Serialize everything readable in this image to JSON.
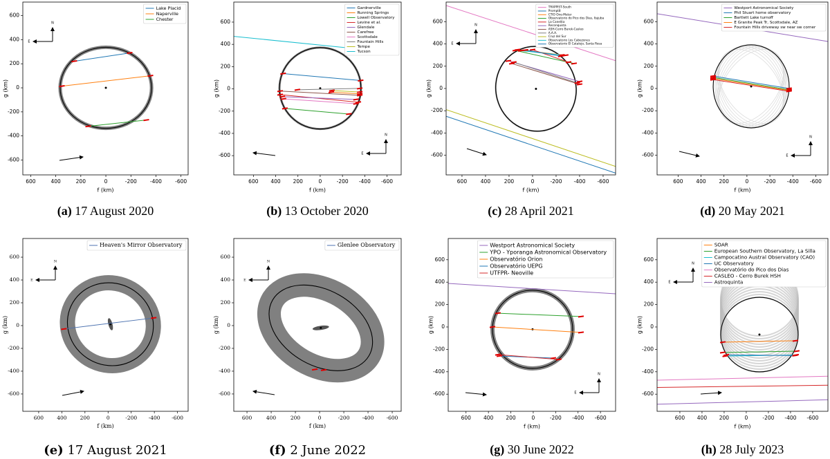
{
  "chart_data": [
    {
      "type": "occultation",
      "label": "(a)",
      "caption": "17 August 2020",
      "xlabel": "f (km)",
      "ylabel": "g (km)",
      "xlim": [
        663,
        -657
      ],
      "ylim": [
        -724,
        713
      ],
      "xticks": [
        600,
        400,
        200,
        0,
        -200,
        -400,
        -600
      ],
      "yticks": [
        -600,
        -400,
        -200,
        0,
        200,
        400,
        600
      ],
      "limb": {
        "f": 0,
        "g": 0,
        "a": 365,
        "b": 337,
        "angle": 0
      },
      "series": [
        {
          "name": "Lake Placid",
          "color": "#1f77b4",
          "x": [
            252,
            -190
          ],
          "values": [
            221,
            290
          ]
        },
        {
          "name": "Naperville",
          "color": "#ff7f0e",
          "x": [
            351,
            -356
          ],
          "values": [
            14,
            100
          ]
        },
        {
          "name": "Chester",
          "color": "#2ca02c",
          "x": [
            141,
            -323
          ],
          "values": [
            -320,
            -268
          ]
        }
      ]
    },
    {
      "type": "occultation",
      "label": "(b)",
      "caption": "13 October 2020",
      "xlabel": "f (km)",
      "ylabel": "g (km)",
      "xlim": [
        776,
        -727
      ],
      "ylim": [
        -773,
        780
      ],
      "xticks": [
        600,
        400,
        200,
        0,
        -200,
        -400,
        -600
      ],
      "yticks": [
        -600,
        -400,
        -200,
        0,
        200,
        400,
        600
      ],
      "limb": {
        "f": 0,
        "g": 5,
        "a": 366,
        "b": 366,
        "angle": 0
      },
      "series": [
        {
          "name": "Gardnerville",
          "color": "#1f77b4",
          "x": [
            333,
            -363
          ],
          "values": [
            137,
            75
          ]
        },
        {
          "name": "Running Springs",
          "color": "#ff7f0e",
          "x": [
            -100,
            -355
          ],
          "values": [
            -30,
            -45
          ]
        },
        {
          "name": "Lowell Observatory",
          "color": "#2ca02c",
          "x": [
            317,
            -257
          ],
          "values": [
            -176,
            -226
          ]
        },
        {
          "name": "Levine et al.",
          "color": "#d62728",
          "x": [
            360,
            -342
          ],
          "values": [
            -52,
            -120
          ]
        },
        {
          "name": "Glendale",
          "color": "#9467bd",
          "x": [
            340,
            -322
          ],
          "values": [
            -70,
            -95
          ]
        },
        {
          "name": "Carefree",
          "color": "#8c564b",
          "x": [
            360,
            -355
          ],
          "values": [
            -20,
            -58
          ]
        },
        {
          "name": "Scottsdale",
          "color": "#e377c2",
          "x": [
            330,
            -322
          ],
          "values": [
            -90,
            -133
          ]
        },
        {
          "name": "Fountain Hills",
          "color": "#7f7f7f",
          "x": [
            205,
            -355
          ],
          "values": [
            -8,
            4
          ]
        },
        {
          "name": "Tempe",
          "color": "#bcbd22",
          "x": [
            -105,
            -355
          ],
          "values": [
            -15,
            -28
          ]
        },
        {
          "name": "Tucson",
          "color": "#17becf",
          "x": [
            776,
            -330
          ],
          "values": [
            472,
            360
          ]
        }
      ]
    },
    {
      "type": "occultation",
      "label": "(c)",
      "caption": "28 April 2021",
      "xlabel": "f (km)",
      "ylabel": "g (km)",
      "xlim": [
        735,
        -706
      ],
      "ylim": [
        -776,
        776
      ],
      "xticks": [
        600,
        400,
        200,
        0,
        -200,
        -400,
        -600
      ],
      "yticks": [
        -600,
        -400,
        -200,
        0,
        200,
        400,
        600
      ],
      "limb": {
        "f": -29,
        "g": -3,
        "a": 341,
        "b": 382,
        "angle": -15
      },
      "series": [
        {
          "name": "TRAPPIST-South",
          "color": "#e377c2",
          "x": [
            735,
            -706
          ],
          "values": [
            745,
            250
          ]
        },
        {
          "name": "Prompt8",
          "color": "#1f77b4",
          "x": [
            735,
            -706
          ],
          "values": [
            -250,
            -760
          ]
        },
        {
          "name": "CTIO One-Meter",
          "color": "#ff7f0e",
          "x": [
            129,
            -282
          ],
          "values": [
            348,
            298
          ]
        },
        {
          "name": "Observatorio do Pico dos Dias, Itajuba",
          "color": "#2ca02c",
          "x": [
            147,
            -353
          ],
          "values": [
            342,
            224
          ]
        },
        {
          "name": "La Canelita",
          "color": "#d62728",
          "x": [
            0,
            -306
          ],
          "values": [
            348,
            236
          ]
        },
        {
          "name": "Reconquista",
          "color": "#9467bd",
          "x": [
            206,
            -400
          ],
          "values": [
            248,
            62
          ]
        },
        {
          "name": "ASH-Cerro Burek-Casleo",
          "color": "#8c564b",
          "x": [
            176,
            -400
          ],
          "values": [
            224,
            37
          ]
        },
        {
          "name": "A.A.A.",
          "color": "#7f7f7f",
          "x": [
            160,
            -380
          ],
          "values": [
            236,
            50
          ]
        },
        {
          "name": "Cruz del Sur",
          "color": "#bcbd22",
          "x": [
            735,
            -706
          ],
          "values": [
            -190,
            -700
          ]
        },
        {
          "name": "Observatorio Los Cabezones",
          "color": "#17becf",
          "x": [
            100,
            -250
          ],
          "values": [
            340,
            300
          ]
        },
        {
          "name": "Observatorio El Catalejo, Santa Rosa",
          "color": "#1f77b4",
          "x": [
            60,
            -240
          ],
          "values": [
            345,
            290
          ]
        }
      ]
    },
    {
      "type": "occultation",
      "label": "(d)",
      "caption": "20 May 2021",
      "xlabel": "f (km)",
      "ylabel": "g (km)",
      "xlim": [
        783,
        -706
      ],
      "ylim": [
        -776,
        776
      ],
      "xticks": [
        600,
        400,
        200,
        0,
        -200,
        -400,
        -600
      ],
      "yticks": [
        -600,
        -400,
        -200,
        0,
        200,
        400,
        600
      ],
      "limb": {
        "f": -37,
        "g": 19,
        "a": 331,
        "b": 373,
        "angle": 0
      },
      "series": [
        {
          "name": "Westport Astronomical Society",
          "color": "#9467bd",
          "x": [
            783,
            -706
          ],
          "values": [
            671,
            422
          ]
        },
        {
          "name": "Phil Stuart home observatory",
          "color": "#1f77b4",
          "x": [
            295,
            -367
          ],
          "values": [
            112,
            0
          ]
        },
        {
          "name": "Bartlett Lake turnoff",
          "color": "#2ca02c",
          "x": [
            295,
            -367
          ],
          "values": [
            99,
            -12
          ]
        },
        {
          "name": "E Granite Peak Tr, Scottsdale, AZ",
          "color": "#ff7f0e",
          "x": [
            295,
            -367
          ],
          "values": [
            90,
            -18
          ]
        },
        {
          "name": "Fountain Hills driveway sw near sw corner",
          "color": "#d62728",
          "x": [
            295,
            -367
          ],
          "values": [
            80,
            -25
          ]
        }
      ]
    },
    {
      "type": "occultation",
      "label": "(e)",
      "caption": "17 August 2021",
      "xlabel": "f (km)",
      "ylabel": "g (km)",
      "xlim": [
        737,
        -692
      ],
      "ylim": [
        -752,
        764
      ],
      "xticks": [
        600,
        400,
        200,
        0,
        -200,
        -400,
        -600
      ],
      "yticks": [
        -600,
        -400,
        -200,
        0,
        200,
        400,
        600
      ],
      "limb": {
        "f": -20,
        "g": 12,
        "a": 375,
        "b": 360,
        "angle": 25
      },
      "series": [
        {
          "name": "Heaven's Mirror Observatory",
          "color": "#4c72b0",
          "x": [
            382,
            -394
          ],
          "values": [
            -30,
            67
          ]
        }
      ]
    },
    {
      "type": "occultation",
      "label": "(f)",
      "caption": "2 June 2022",
      "xlabel": "f (km)",
      "ylabel": "g (km)",
      "xlim": [
        709,
        -674
      ],
      "ylim": [
        -752,
        764
      ],
      "xticks": [
        600,
        400,
        200,
        0,
        -200,
        -400,
        -600
      ],
      "yticks": [
        -600,
        -400,
        -200,
        0,
        200,
        400,
        600
      ],
      "limb": {
        "f": -10,
        "g": -20,
        "a": 460,
        "b": 330,
        "angle": 30
      },
      "series": [
        {
          "name": "Glenlee Observatory",
          "color": "#4c72b0",
          "x": [
            40,
            -34
          ],
          "values": [
            -385,
            -390
          ]
        }
      ]
    },
    {
      "type": "occultation",
      "label": "(g)",
      "caption": "30 June 2022",
      "xlabel": "f (km)",
      "ylabel": "g (km)",
      "xlim": [
        759,
        -735
      ],
      "ylim": [
        -753,
        790
      ],
      "xticks": [
        600,
        400,
        200,
        0,
        -200,
        -400,
        -600
      ],
      "yticks": [
        -600,
        -400,
        -200,
        0,
        200,
        400,
        600
      ],
      "limb": {
        "f": 6,
        "g": -21,
        "a": 358,
        "b": 349,
        "angle": 0
      },
      "series": [
        {
          "name": "Westport Astronomical Society",
          "color": "#9467bd",
          "x": [
            759,
            -735
          ],
          "values": [
            389,
            296
          ]
        },
        {
          "name": "YPO - Yporanga Astronomical Observatory",
          "color": "#2ca02c",
          "x": [
            315,
            -426
          ],
          "values": [
            123,
            93
          ]
        },
        {
          "name": "Observatório Orion",
          "color": "#ff7f0e",
          "x": [
            364,
            -426
          ],
          "values": [
            0,
            -49
          ]
        },
        {
          "name": "Observatório UEPG",
          "color": "#1f77b4",
          "x": [
            302,
            -179
          ],
          "values": [
            -259,
            -278
          ]
        },
        {
          "name": "UTFPR- Neoville",
          "color": "#d62728",
          "x": [
            315,
            -228
          ],
          "values": [
            -247,
            -290
          ]
        }
      ]
    },
    {
      "type": "occultation",
      "label": "(h)",
      "caption": "28 July 2023",
      "xlabel": "f (km)",
      "ylabel": "g (km)",
      "xlim": [
        806,
        -738
      ],
      "ylim": [
        -753,
        790
      ],
      "xticks": [
        600,
        400,
        200,
        0,
        -200,
        -400,
        -600
      ],
      "yticks": [
        -600,
        -400,
        -200,
        0,
        200,
        400,
        600
      ],
      "limb": {
        "f": -119,
        "g": -68,
        "a": 350,
        "b": 333,
        "angle": 0
      },
      "series": [
        {
          "name": "SOAR",
          "color": "#ff7f0e",
          "x": [
            212,
            -444
          ],
          "values": [
            -136,
            -123
          ]
        },
        {
          "name": "European Southern Observatory, La Silla",
          "color": "#2ca02c",
          "x": [
            212,
            -456
          ],
          "values": [
            -228,
            -216
          ]
        },
        {
          "name": "Campocatino Austral Observatory (CAO)",
          "color": "#17becf",
          "x": [
            190,
            -450
          ],
          "values": [
            -260,
            -250
          ]
        },
        {
          "name": "UC Observatory",
          "color": "#1f77b4",
          "x": [
            180,
            -440
          ],
          "values": [
            -250,
            -255
          ]
        },
        {
          "name": "Observatório do Pico dos Dias",
          "color": "#e377c2",
          "x": [
            806,
            -738
          ],
          "values": [
            -475,
            -440
          ]
        },
        {
          "name": "CASLEO - Cerro Burek HSH",
          "color": "#d62728",
          "x": [
            806,
            -738
          ],
          "values": [
            -540,
            -520
          ]
        },
        {
          "name": "Astroquinta",
          "color": "#9467bd",
          "x": [
            806,
            -738
          ],
          "values": [
            -690,
            -650
          ]
        }
      ]
    }
  ]
}
